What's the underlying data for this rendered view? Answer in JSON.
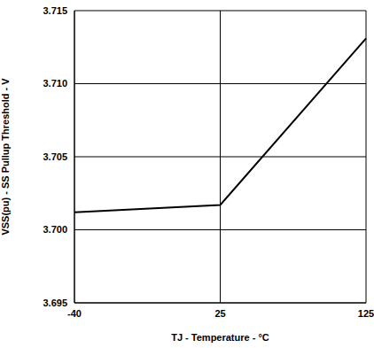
{
  "chart_data": {
    "type": "line",
    "x_label": "TJ - Temperature - °C",
    "y_label": "VSS(pu) - SS Pullup Threshold - V",
    "categories": [
      "-40",
      "25",
      "125"
    ],
    "values": [
      3.7012,
      3.7017,
      3.7131
    ],
    "color": "#000000",
    "ylim": [
      3.695,
      3.715
    ],
    "yticks": [
      3.695,
      {
        "value": 3.7,
        "label": "3.700"
      },
      3.705,
      {
        "value": 3.71,
        "label": "3.710"
      },
      3.715
    ],
    "grid": true
  }
}
